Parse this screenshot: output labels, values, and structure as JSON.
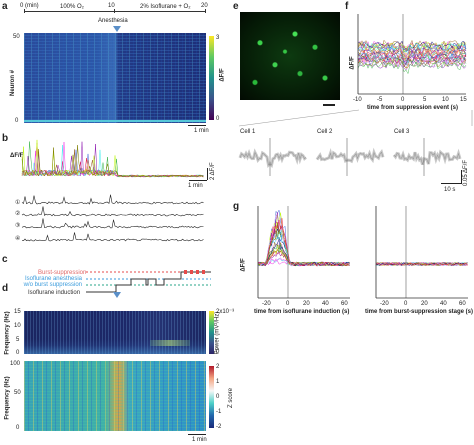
{
  "panels": {
    "a": "a",
    "b": "b",
    "c": "c",
    "d": "d",
    "e": "e",
    "f": "f",
    "g": "g"
  },
  "panel_a": {
    "timeline_start": "0 (min)",
    "timeline_mid": "10",
    "timeline_end": "20",
    "cond_1": "100% O₂",
    "cond_2": "2% Isoflurane + O₂",
    "event": "Anesthesia",
    "ylabel": "Neuron #",
    "yticks": [
      "50",
      "0"
    ],
    "cbar_label": "ΔF/F",
    "cbar_ticks": [
      "3",
      "0"
    ],
    "scale": "1 min"
  },
  "panel_b": {
    "ylabel": "ΔF/F",
    "scale_x": "1 min",
    "scale_y": "2 ΔF/F",
    "traces": [
      "①",
      "②",
      "③",
      "④"
    ]
  },
  "panel_c": {
    "labels": [
      "Burst-suppression",
      "Isoflurane anesthesia w/o burst suppression",
      "Isoflurane induction"
    ],
    "colors": [
      "#e64b4b",
      "#3a9bdc",
      "#2aa58a"
    ]
  },
  "panel_d": {
    "ylabel_top": "Frequency (Hz)",
    "yticks_top": [
      "15",
      "10",
      "5",
      "0"
    ],
    "cbar_top_label": "Power (mV²/Hz)",
    "cbar_top_ticks": [
      "2x10⁻³",
      "0"
    ],
    "ylabel_bottom": "Frequency (Hz)",
    "yticks_bottom": [
      "100",
      "50",
      "0"
    ],
    "cbar_bottom_label": "Z score",
    "cbar_bottom_ticks": [
      "2",
      "1",
      "0",
      "-1",
      "-2"
    ],
    "scale": "1 min"
  },
  "panel_f": {
    "ylabel": "ΔF/F",
    "xlabel": "time from suppression event (s)",
    "xticks": [
      "-10",
      "-5",
      "0",
      "5",
      "10",
      "15"
    ],
    "cells": [
      "Cell 1",
      "Cell 2",
      "Cell 3"
    ],
    "scale_y": "0.05 ΔF/F",
    "scale_x": "10 s"
  },
  "panel_g": {
    "ylabel": "ΔF/F",
    "xlabel_left": "time from isoflurane induction (s)",
    "xlabel_right": "time from burst-suppression stage (s)",
    "xticks": [
      "-20",
      "0",
      "20",
      "40",
      "60"
    ]
  }
}
